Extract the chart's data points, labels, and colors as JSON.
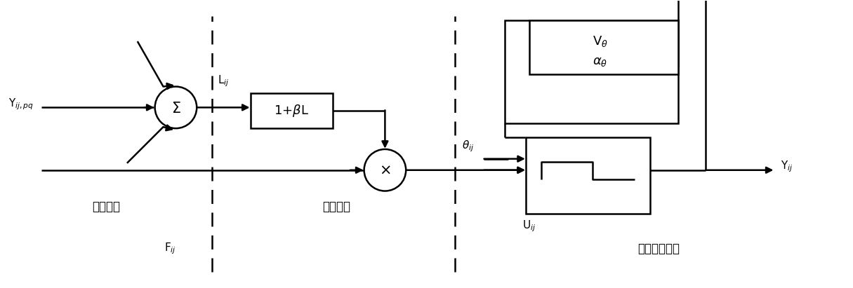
{
  "fig_width": 12.15,
  "fig_height": 4.11,
  "bg_color": "#ffffff",
  "line_color": "#000000",
  "lw": 1.8,
  "labels": {
    "Y_ij_pq": "Y$_{ij,pq}$",
    "F_ij": "F$_{ij}$",
    "L_ij": "L$_{ij}$",
    "section1": "接收部分",
    "section2": "调制部分",
    "theta_ij": "θ$_{ij}$",
    "U_ij": "U$_{ij}$",
    "Y_ij": "Y$_{ij}$",
    "section3": "脉冲产生部分"
  }
}
